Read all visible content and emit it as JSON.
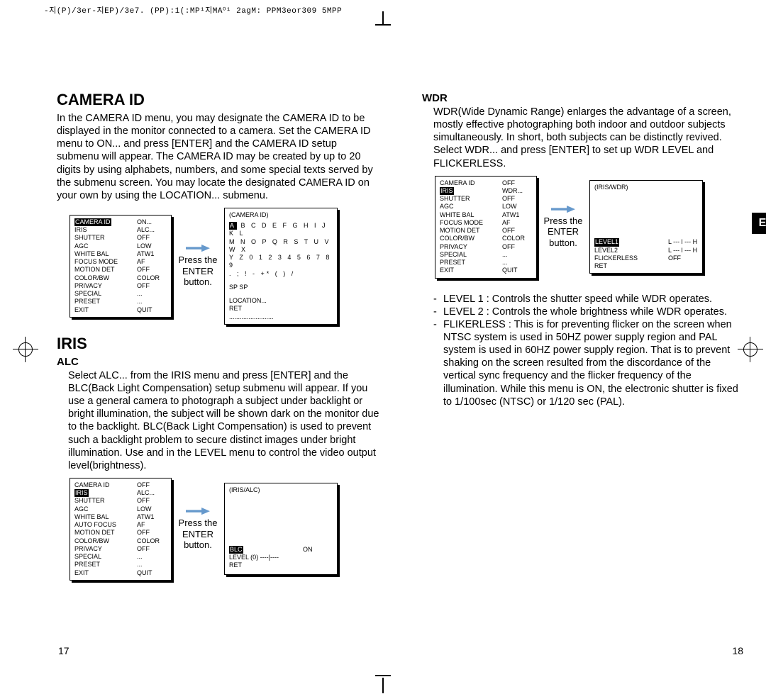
{
  "header_code": "-지(P)/3er-지EP)/3e7. (PP):1(:MP¹지MA⁰¹ 2agM: PPM3eor309 5MPP",
  "left": {
    "h1": "CAMERA ID",
    "p1": "In the CAMERA ID menu, you may designate the CAMERA ID to be displayed in the monitor connected to a camera. Set the CAMERA ID menu to ON... and press [ENTER] and the CAMERA ID setup submenu will appear. The CAMERA ID may be created by up to 20 digits by using alphabets, numbers, and some special texts served by the submenu screen. You may locate the designated CAMERA ID on your own by using the LOCATION... submenu.",
    "press": "Press the ENTER button.",
    "menu1": [
      [
        "CAMERA ID",
        "ON..."
      ],
      [
        "IRIS",
        "ALC..."
      ],
      [
        "SHUTTER",
        "OFF"
      ],
      [
        "AGC",
        "LOW"
      ],
      [
        "WHITE BAL",
        "ATW1"
      ],
      [
        "FOCUS MODE",
        "AF"
      ],
      [
        "MOTION DET",
        "OFF"
      ],
      [
        "COLOR/BW",
        "COLOR"
      ],
      [
        "PRIVACY",
        "OFF"
      ],
      [
        "SPECIAL",
        "..."
      ],
      [
        "PRESET",
        "..."
      ],
      [
        "EXIT",
        "QUIT"
      ]
    ],
    "menu1_hi": "CAMERA ID",
    "sub1_title": "(CAMERA ID)",
    "sub1_rows": [
      "A B C D E F G H I  J K L",
      "M N O P Q R S T U V W X",
      "Y Z 0 1 2 3 4 5 6 7 8 9",
      ".   ; !    - +* ( ) /"
    ],
    "sub1_sp": "SP     SP",
    "sub1_loc": "LOCATION...",
    "sub1_ret": "RET",
    "sub1_dots": ".........................",
    "iris_h": "IRIS",
    "alc_h": "ALC",
    "alc_p": "Select ALC... from the IRIS menu and press [ENTER] and the BLC(Back Light Compensation) setup submenu will appear. If you use a general camera to photograph a subject under backlight or bright illumination, the subject will be shown dark on the monitor due to the backlight. BLC(Back Light Compensation) is used to prevent such a backlight problem to secure distinct images under bright illumination. Use       and     in the LEVEL menu to control the video output level(brightness).",
    "menu2": [
      [
        "CAMERA ID",
        "OFF"
      ],
      [
        "IRIS",
        "ALC..."
      ],
      [
        "SHUTTER",
        "OFF"
      ],
      [
        "AGC",
        "LOW"
      ],
      [
        "WHITE BAL",
        "ATW1"
      ],
      [
        "AUTO FOCUS",
        "AF"
      ],
      [
        "MOTION DET",
        "OFF"
      ],
      [
        "COLOR/BW",
        "COLOR"
      ],
      [
        "PRIVACY",
        "OFF"
      ],
      [
        "SPECIAL",
        "..."
      ],
      [
        "PRESET",
        "..."
      ],
      [
        "EXIT",
        "QUIT"
      ]
    ],
    "menu2_hi": "IRIS",
    "sub2_title": "(IRIS/ALC)",
    "sub2_blc_k": "BLC",
    "sub2_blc_v": "ON",
    "sub2_level": "LEVEL  (0)       ----|----",
    "sub2_ret": "RET",
    "pgnum": "17"
  },
  "right": {
    "wdr_h": "WDR",
    "wdr_p": "WDR(Wide Dynamic Range) enlarges the advantage of a screen, mostly effective photographing both indoor and outdoor subjects simultaneously. In short, both subjects can be distinctly revived. Select WDR... and press [ENTER] to set up WDR LEVEL and FLICKERLESS.",
    "press": "Press the ENTER button.",
    "menu1": [
      [
        "CAMERA ID",
        "OFF"
      ],
      [
        "IRIS",
        "WDR..."
      ],
      [
        "SHUTTER",
        "OFF"
      ],
      [
        "AGC",
        "LOW"
      ],
      [
        "WHITE BAL",
        "ATW1"
      ],
      [
        "FOCUS MODE",
        "AF"
      ],
      [
        "MOTION DET",
        "OFF"
      ],
      [
        "COLOR/BW",
        "COLOR"
      ],
      [
        "PRIVACY",
        "OFF"
      ],
      [
        "SPECIAL",
        "..."
      ],
      [
        "PRESET",
        "..."
      ],
      [
        "EXIT",
        "QUIT"
      ]
    ],
    "menu1_hi": "IRIS",
    "sub1_title": "(IRIS/WDR)",
    "sub1_l1_k": "LEVEL1",
    "sub1_l1_v": "L --- l --- H",
    "sub1_l2_k": "LEVEL2",
    "sub1_l2_v": "L --- l --- H",
    "sub1_fl_k": "FLICKERLESS",
    "sub1_fl_v": "OFF",
    "sub1_ret": "RET",
    "bul1": "LEVEL 1 : Controls the shutter speed while WDR operates.",
    "bul2": "LEVEL 2 : Controls the whole brightness while WDR operates.",
    "bul3": "FLIKERLESS : This is for preventing flicker on the screen when NTSC system is used in 50HZ power supply region and PAL system is used in 60HZ power supply region. That is to prevent shaking on the screen resulted from the discordance of the vertical sync frequency and the flicker frequency of the illumination. While this menu is ON, the electronic shutter is fixed to 1/100sec (NTSC) or 1/120 sec (PAL).",
    "etab": "E",
    "pgnum": "18"
  },
  "colors": {
    "black": "#000000",
    "white": "#ffffff"
  }
}
